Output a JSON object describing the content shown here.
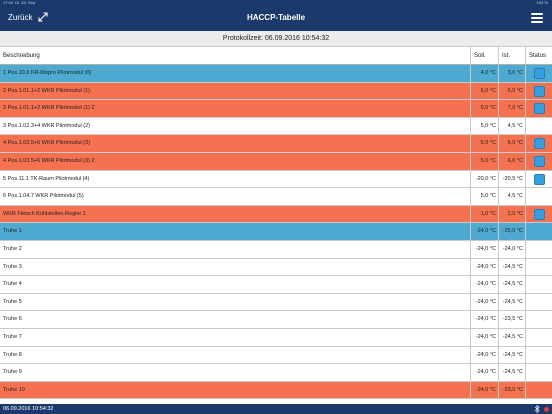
{
  "statusbar": {
    "time": "17:44",
    "date": "Di. 29. Sep.",
    "right": "100 %"
  },
  "navbar": {
    "back_label": "Zurück",
    "title": "HACCP-Tabelle"
  },
  "protokoll": {
    "label": "Protokollzeit: 06.09.2016 10:54:32"
  },
  "table": {
    "headers": {
      "desc": "Beschreibung",
      "soll": "Soll.",
      "ist": "Ist.",
      "status": "Status"
    },
    "rows": [
      {
        "desc": "1 Pos.10.3 KR-Mopro Pilotmodul (0)",
        "soll": "4,0 °C",
        "ist": "3,0 °C"
      },
      {
        "desc": "2 Pos.1.01.1+2 WKR Pilotmodul (1)",
        "soll": "5,0 °C",
        "ist": "6,0 °C"
      },
      {
        "desc": "2 Pos.1.01.1+2 WKR Pilotmodul (1) 2",
        "soll": "5,0 °C",
        "ist": "7,0 °C"
      },
      {
        "desc": "3 Pos.1.02.3+4 WKR Pilotmodul (2)",
        "soll": "5,0 °C",
        "ist": "4,5 °C"
      },
      {
        "desc": "4 Pos.1.03.5+6 WKR Pilotmodul (3)",
        "soll": "5,0 °C",
        "ist": "6,0 °C"
      },
      {
        "desc": "4 Pos.1.03.5+6 WKR Pilotmodul (3) 2",
        "soll": "5,0 °C",
        "ist": "6,0 °C"
      },
      {
        "desc": "5 Pos.11.1 TK-Raum Pilotmodul (4)",
        "soll": "-20,0 °C",
        "ist": "-20,5 °C"
      },
      {
        "desc": "6 Pos.1.04.7 WKR Pilotmodul (5)",
        "soll": "5,0 °C",
        "ist": "4,5 °C"
      },
      {
        "desc": "WKR Fleisch Kühlstellen-Regler 1",
        "soll": "1,0 °C",
        "ist": "2,0 °C"
      },
      {
        "desc": "Truhe 1",
        "soll": "-24,0 °C",
        "ist": "-25,0 °C"
      },
      {
        "desc": "Truhe 2",
        "soll": "-24,0 °C",
        "ist": "-24,0 °C"
      },
      {
        "desc": "Truhe 3",
        "soll": "-24,0 °C",
        "ist": "-24,5 °C"
      },
      {
        "desc": "Truhe 4",
        "soll": "-24,0 °C",
        "ist": "-24,5 °C"
      },
      {
        "desc": "Truhe 5",
        "soll": "-24,0 °C",
        "ist": "-24,5 °C"
      },
      {
        "desc": "Truhe 6",
        "soll": "-24,0 °C",
        "ist": "-23,5 °C"
      },
      {
        "desc": "Truhe 7",
        "soll": "-24,0 °C",
        "ist": "-24,5 °C"
      },
      {
        "desc": "Truhe 8",
        "soll": "-24,0 °C",
        "ist": "-24,5 °C"
      },
      {
        "desc": "Truhe 9",
        "soll": "-24,0 °C",
        "ist": "-24,5 °C"
      },
      {
        "desc": "Truhe 10",
        "soll": "-24,0 °C",
        "ist": "-23,0 °C"
      }
    ]
  },
  "footer": {
    "timestamp": "06.09.2016 10:54:32"
  },
  "colors": {
    "navbar": "#1b3a6b",
    "row_blue": "#4eaad0",
    "row_red": "#f5714f",
    "status_button": "#34a0e0"
  },
  "icons": {
    "expand": "expand-icon",
    "menu": "hamburger-menu-icon",
    "bluetooth": "bluetooth-icon",
    "recording": "red-dot-icon"
  }
}
